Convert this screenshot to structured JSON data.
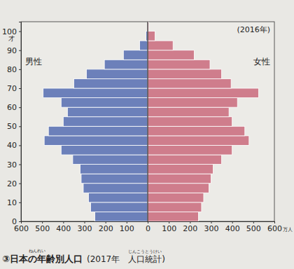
{
  "chart_data": {
    "type": "bar",
    "orientation": "horizontal",
    "title": "③日本の年齢別人口",
    "title_furigana": "ねんれい",
    "subtitle": "(2017年　人口統計)",
    "subtitle_furigana": "じんこうとうけい",
    "annotation": "(2016年)",
    "y_label": "才",
    "x_label": "万人",
    "bins": [
      0,
      5,
      10,
      15,
      20,
      25,
      30,
      35,
      40,
      45,
      50,
      55,
      60,
      65,
      70,
      75,
      80,
      85,
      90,
      95,
      100,
      105
    ],
    "series": [
      {
        "name": "男性",
        "color": "#6c80ba",
        "values": [
          250,
          270,
          280,
          305,
          315,
          320,
          355,
          410,
          490,
          470,
          400,
          380,
          410,
          495,
          350,
          290,
          205,
          115,
          38,
          8,
          1
        ]
      },
      {
        "name": "女性",
        "color": "#cf7d8c",
        "values": [
          240,
          255,
          265,
          290,
          300,
          310,
          350,
          400,
          480,
          460,
          400,
          385,
          425,
          525,
          395,
          350,
          295,
          220,
          120,
          35,
          5
        ]
      }
    ],
    "xlim": [
      0,
      600
    ],
    "xticks": [
      0,
      100,
      200,
      300,
      400,
      500,
      600
    ],
    "ylim": [
      0,
      105
    ],
    "yticks": [
      0,
      10,
      20,
      30,
      40,
      50,
      60,
      70,
      80,
      90,
      100
    ],
    "grid": false
  }
}
